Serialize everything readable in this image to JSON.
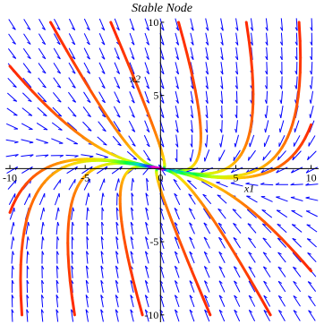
{
  "chart_data": {
    "type": "phase-portrait",
    "title": "Stable Node",
    "xlabel": "x1",
    "ylabel": "x2",
    "xlim": [
      -10.3,
      10.5
    ],
    "ylim": [
      -10.5,
      10.3
    ],
    "x_ticks": [
      -10,
      -5,
      0,
      5,
      10
    ],
    "y_ticks": [
      -10,
      -5,
      0,
      5,
      10
    ],
    "x_tick_labels": [
      "-10",
      "-5",
      "0",
      "5",
      "10"
    ],
    "y_tick_labels": [
      "-10",
      "-5",
      "",
      "5",
      "10"
    ],
    "system": {
      "slow_eigenvector": [
        -1,
        0.2
      ],
      "fast_eigenvector": [
        -0.45,
        1
      ],
      "fast_to_slow_rate_ratio": 3
    },
    "arrow_color": "#0000ff",
    "trajectories": [
      {
        "x0": -10,
        "y0": 7
      },
      {
        "x0": -7.3,
        "y0": 10
      },
      {
        "x0": -3.3,
        "y0": 10
      },
      {
        "x0": 1.2,
        "y0": 10
      },
      {
        "x0": 5.7,
        "y0": 10
      },
      {
        "x0": 9.2,
        "y0": 10
      },
      {
        "x0": 10,
        "y0": 3
      },
      {
        "x0": 10,
        "y0": -7
      },
      {
        "x0": 7.3,
        "y0": -10
      },
      {
        "x0": 3.3,
        "y0": -10
      },
      {
        "x0": -1.2,
        "y0": -10
      },
      {
        "x0": -5.7,
        "y0": -10
      },
      {
        "x0": -9.2,
        "y0": -10
      },
      {
        "x0": -10,
        "y0": -3
      }
    ],
    "color_scheme": [
      "#ff2a00",
      "#ff7a00",
      "#ffd200",
      "#c8ff00",
      "#00ff40",
      "#00d8d0",
      "#0060ff",
      "#8000ff",
      "#ff00c0"
    ]
  }
}
